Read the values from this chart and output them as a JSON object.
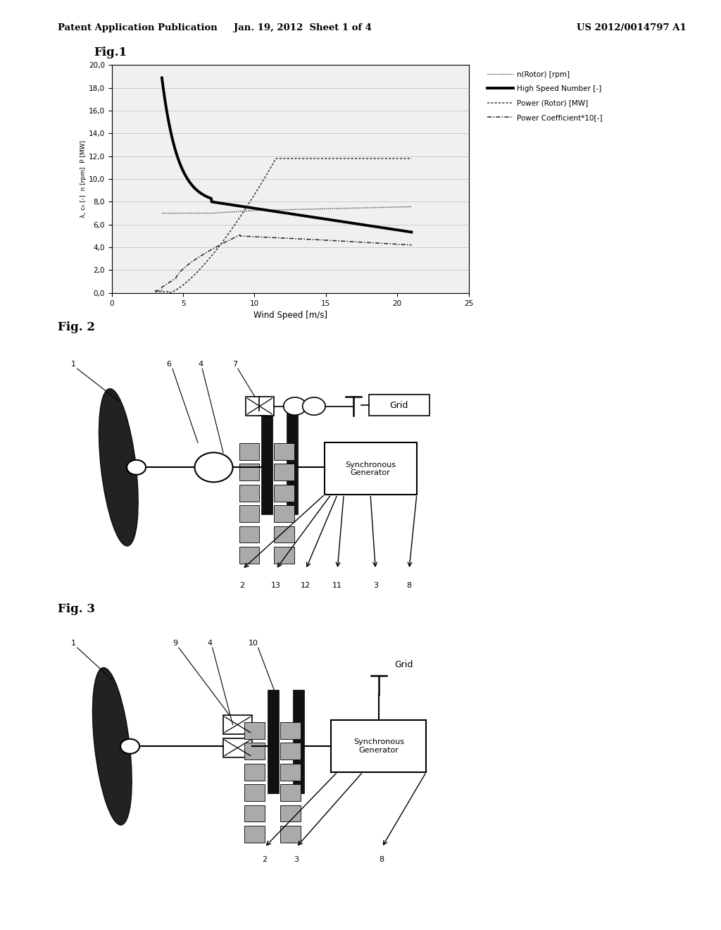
{
  "header_left": "Patent Application Publication",
  "header_center": "Jan. 19, 2012  Sheet 1 of 4",
  "header_right": "US 2012/0014797 A1",
  "fig1_title": "Fig.1",
  "fig1_xlabel": "Wind Speed [m/s]",
  "fig1_ylabel": "λ, cₕ [-]  n [rpm]  P [MW]",
  "fig1_xlim": [
    0,
    25
  ],
  "fig1_ylim": [
    0,
    20
  ],
  "fig1_yticks": [
    0.0,
    2.0,
    4.0,
    6.0,
    8.0,
    10.0,
    12.0,
    14.0,
    16.0,
    18.0,
    20.0
  ],
  "fig1_xticks": [
    0,
    5,
    10,
    15,
    20,
    25
  ],
  "fig2_title": "Fig. 2",
  "fig3_title": "Fig. 3",
  "bg_color": "#ffffff",
  "text_color": "#000000",
  "legend_items": [
    "n(Rotor) [rpm]",
    "High Speed Number [-]",
    "Power (Rotor) [MW]",
    "Power Coefficient*10[-]"
  ]
}
